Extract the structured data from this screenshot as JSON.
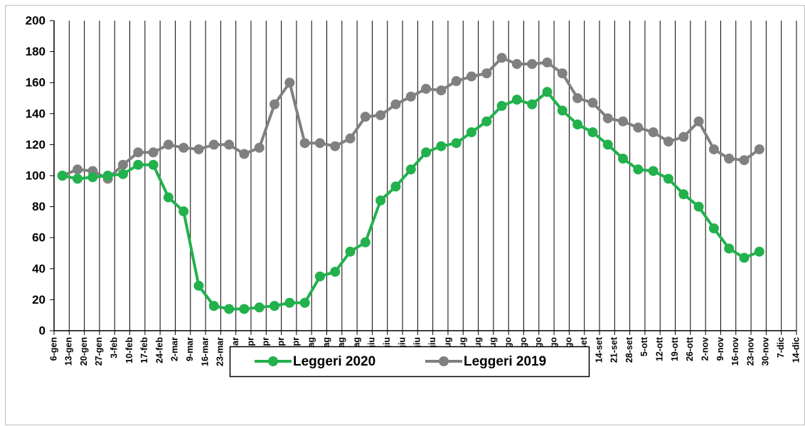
{
  "chart_data": {
    "type": "line",
    "categories": [
      "6-gen",
      "13-gen",
      "20-gen",
      "27-gen",
      "3-feb",
      "10-feb",
      "17-feb",
      "24-feb",
      "2-mar",
      "9-mar",
      "16-mar",
      "23-mar",
      "30-mar",
      "6-apr",
      "13-apr",
      "20-apr",
      "27-apr",
      "4-mag",
      "11-mag",
      "18-mag",
      "25-mag",
      "1-giu",
      "8-giu",
      "15-giu",
      "22-giu",
      "29-giu",
      "6-lug",
      "13-lug",
      "20-lug",
      "27-lug",
      "3-ago",
      "10-ago",
      "17-ago",
      "24-ago",
      "31-ago",
      "7-set",
      "14-set",
      "21-set",
      "28-set",
      "5-ott",
      "12-ott",
      "19-ott",
      "26-ott",
      "2-nov",
      "9-nov",
      "16-nov",
      "23-nov",
      "30-nov",
      "7-dic",
      "14-dic"
    ],
    "series": [
      {
        "name": "Leggeri 2020",
        "color": "#22b14c",
        "values": [
          100,
          98,
          99,
          100,
          101,
          107,
          107,
          86,
          77,
          29,
          16,
          14,
          14,
          15,
          16,
          18,
          18,
          35,
          38,
          51,
          57,
          84,
          93,
          104,
          115,
          119,
          121,
          128,
          135,
          145,
          149,
          146,
          154,
          142,
          133,
          128,
          120,
          111,
          104,
          103,
          98,
          88,
          80,
          66,
          53,
          47,
          51,
          null,
          null,
          null
        ]
      },
      {
        "name": "Leggeri 2019",
        "color": "#808080",
        "values": [
          100,
          104,
          103,
          98,
          107,
          115,
          115,
          120,
          118,
          117,
          120,
          120,
          114,
          118,
          146,
          160,
          121,
          121,
          119,
          124,
          138,
          139,
          146,
          151,
          156,
          155,
          161,
          164,
          166,
          176,
          172,
          172,
          173,
          166,
          150,
          147,
          137,
          135,
          131,
          128,
          122,
          125,
          135,
          117,
          111,
          110,
          117,
          null,
          null,
          null
        ]
      }
    ],
    "ylim": [
      0,
      200
    ],
    "yticks": [
      0,
      20,
      40,
      60,
      80,
      100,
      120,
      140,
      160,
      180,
      200
    ],
    "grid": true,
    "legend": "bottom"
  }
}
